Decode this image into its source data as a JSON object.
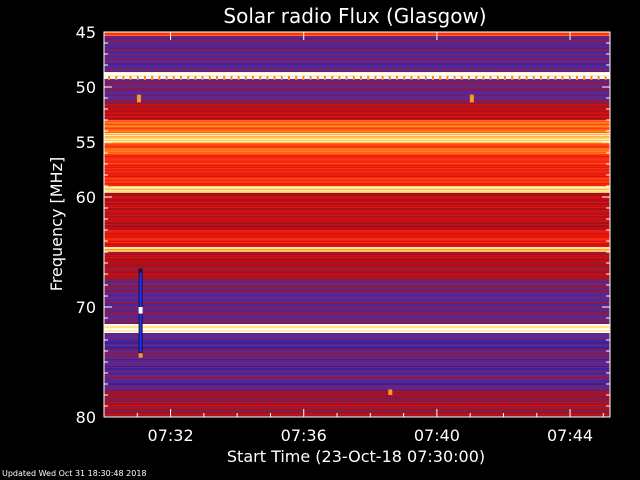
{
  "chart_data": {
    "type": "heatmap",
    "title": "Solar radio Flux (Glasgow)",
    "xlabel": "Start Time (23-Oct-18 07:30:00)",
    "ylabel": "Frequency [MHz]",
    "x_range_minutes": [
      0,
      15.2
    ],
    "x_ticks": [
      {
        "minute": 2,
        "label": "07:32"
      },
      {
        "minute": 6,
        "label": "07:36"
      },
      {
        "minute": 10,
        "label": "07:40"
      },
      {
        "minute": 14,
        "label": "07:44"
      }
    ],
    "ylim": [
      45,
      80
    ],
    "y_inverted": true,
    "y_ticks": [
      45,
      50,
      55,
      60,
      70,
      80
    ],
    "colormap": [
      "#1a1aa0",
      "#5a2a9a",
      "#a0101a",
      "#e01010",
      "#ff4010",
      "#ff9020",
      "#ffe080",
      "#ffffff"
    ],
    "frequency_bands": [
      {
        "from": 45,
        "to": 45.4,
        "level": 0.55
      },
      {
        "from": 45.4,
        "to": 48.6,
        "level": 0.15
      },
      {
        "from": 48.6,
        "to": 49.3,
        "level": 0.95
      },
      {
        "from": 49.3,
        "to": 51.5,
        "level": 0.2
      },
      {
        "from": 51.5,
        "to": 53.0,
        "level": 0.35
      },
      {
        "from": 53.0,
        "to": 54.2,
        "level": 0.62
      },
      {
        "from": 54.2,
        "to": 55.1,
        "level": 0.85
      },
      {
        "from": 55.1,
        "to": 56.3,
        "level": 0.6
      },
      {
        "from": 56.3,
        "to": 59.0,
        "level": 0.5
      },
      {
        "from": 59.0,
        "to": 59.6,
        "level": 0.88
      },
      {
        "from": 59.6,
        "to": 63.0,
        "level": 0.35
      },
      {
        "from": 63.0,
        "to": 64.5,
        "level": 0.45
      },
      {
        "from": 64.5,
        "to": 65.0,
        "level": 0.82
      },
      {
        "from": 65.0,
        "to": 67.5,
        "level": 0.3
      },
      {
        "from": 67.5,
        "to": 71.5,
        "level": 0.18
      },
      {
        "from": 71.5,
        "to": 72.4,
        "level": 0.92
      },
      {
        "from": 72.4,
        "to": 77.5,
        "level": 0.14
      },
      {
        "from": 77.5,
        "to": 80,
        "level": 0.3
      }
    ],
    "bursts": [
      {
        "minute": 1.1,
        "from_mhz": 66.5,
        "to_mhz": 74.5,
        "kind": "column"
      },
      {
        "minute": 1.1,
        "from_mhz": 70.0,
        "to_mhz": 70.6,
        "kind": "white"
      },
      {
        "minute": 1.1,
        "from_mhz": 74.2,
        "to_mhz": 74.6,
        "kind": "orange"
      },
      {
        "minute": 1.05,
        "from_mhz": 50.7,
        "to_mhz": 51.4,
        "kind": "orange"
      },
      {
        "minute": 11.05,
        "from_mhz": 50.7,
        "to_mhz": 51.4,
        "kind": "orange"
      },
      {
        "minute": 8.6,
        "from_mhz": 77.5,
        "to_mhz": 78.0,
        "kind": "orange"
      }
    ]
  },
  "footer": "Updated Wed Oct 31 18:30:48 2018"
}
